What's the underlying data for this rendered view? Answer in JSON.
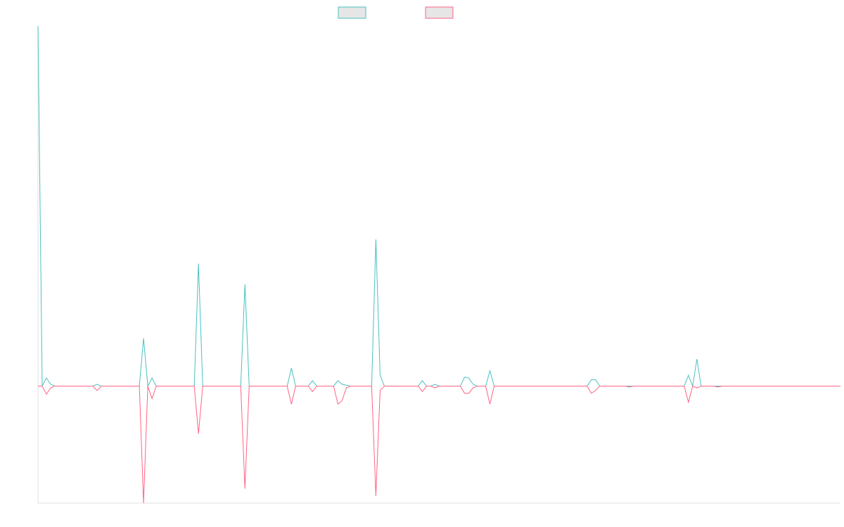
{
  "chart_data": {
    "type": "line",
    "ylim": [
      -1.3,
      4
    ],
    "series": [
      {
        "color": "#4bc0c0",
        "values": [
          4,
          0,
          0.09,
          0.02,
          0,
          0,
          0,
          0,
          0,
          0,
          0,
          0,
          0,
          0,
          0.02,
          0,
          0,
          0,
          0,
          0,
          0,
          0,
          0,
          0,
          0,
          0.53,
          0,
          0.09,
          0,
          0,
          0,
          0,
          0,
          0,
          0,
          0,
          0,
          0,
          1.36,
          0,
          0,
          0,
          0,
          0,
          0,
          0,
          0,
          0,
          0,
          1.13,
          0,
          0,
          0,
          0,
          0,
          0,
          0,
          0,
          0,
          0,
          0.2,
          0,
          0,
          0,
          0,
          0.06,
          0,
          0,
          0,
          0,
          0,
          0.06,
          0.02,
          0.01,
          0,
          0,
          0,
          0,
          0,
          0,
          1.63,
          0.12,
          0,
          0,
          0,
          0,
          0,
          0,
          0,
          0,
          0,
          0.06,
          0,
          0,
          0.02,
          0,
          0,
          0,
          0,
          0,
          0,
          0.1,
          0.09,
          0.02,
          0,
          0,
          0,
          0.17,
          0,
          0,
          0,
          0,
          0,
          0,
          0,
          0,
          0,
          0,
          0,
          0,
          0,
          0,
          0,
          0,
          0,
          0,
          0,
          0,
          0,
          0,
          0,
          0.07,
          0.07,
          0,
          0,
          0,
          0,
          0,
          0,
          0,
          0,
          0,
          0,
          0,
          0,
          0,
          0,
          0,
          0,
          0,
          0,
          0,
          0,
          0,
          0.12,
          0,
          0.3,
          0,
          0,
          0,
          0,
          0,
          0,
          0,
          0,
          0,
          0,
          0,
          0,
          0,
          0,
          0,
          0,
          0,
          0,
          0,
          0,
          0,
          0,
          0,
          0,
          0,
          0,
          0,
          0,
          0,
          0,
          0,
          0,
          0,
          0
        ]
      },
      {
        "color": "#ff6384",
        "values": [
          0,
          0,
          -0.09,
          -0.02,
          0,
          0,
          0,
          0,
          0,
          0,
          0,
          0,
          0,
          0,
          -0.05,
          0,
          0,
          0,
          0,
          0,
          0,
          0,
          0,
          0,
          0,
          -1.3,
          0,
          -0.14,
          0,
          0,
          0,
          0,
          0,
          0,
          0,
          0,
          0,
          0,
          -0.53,
          0,
          0,
          0,
          0,
          0,
          0,
          0,
          0,
          0,
          0,
          -1.14,
          0,
          0,
          0,
          0,
          0,
          0,
          0,
          0,
          0,
          0,
          -0.2,
          0,
          0,
          0,
          0,
          -0.06,
          0,
          0,
          0,
          0,
          0,
          -0.2,
          -0.16,
          -0.02,
          0,
          0,
          0,
          0,
          0,
          0,
          -1.22,
          -0.05,
          0,
          0,
          0,
          0,
          0,
          0,
          0,
          0,
          0,
          -0.06,
          0,
          0,
          -0.02,
          0,
          0,
          0,
          0,
          0,
          0,
          -0.08,
          -0.08,
          -0.02,
          0,
          0,
          0,
          -0.2,
          0,
          0,
          0,
          0,
          0,
          0,
          0,
          0,
          0,
          0,
          0,
          0,
          0,
          0,
          0,
          0,
          0,
          0,
          0,
          0,
          0,
          0,
          0,
          -0.08,
          -0.05,
          0,
          0,
          0,
          0,
          0,
          0,
          0,
          -0.01,
          0,
          0,
          0,
          0,
          0,
          0,
          0,
          0,
          0,
          0,
          0,
          0,
          0,
          -0.18,
          0,
          -0.02,
          0,
          0,
          0,
          0,
          -0.01,
          0,
          0,
          0,
          0,
          0,
          0,
          0,
          0,
          0,
          0,
          0,
          0,
          0,
          0,
          0,
          0,
          0,
          0,
          0,
          0,
          0,
          0,
          0,
          0,
          0,
          0,
          0,
          0,
          0
        ]
      }
    ]
  }
}
